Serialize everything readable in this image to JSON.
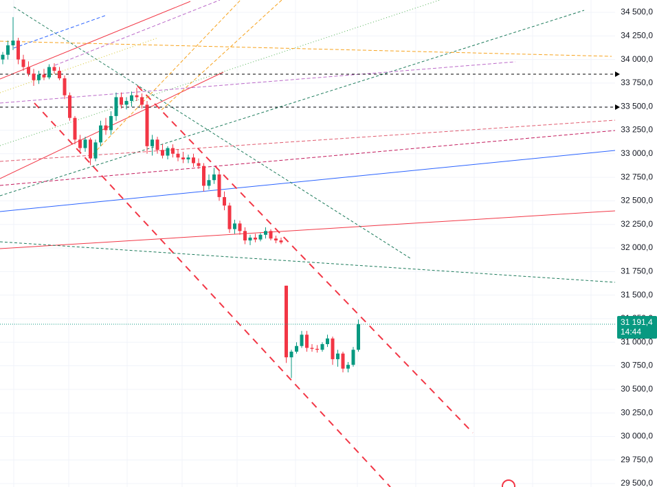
{
  "chart_data": {
    "type": "candlestick",
    "open": [
      34000,
      34050,
      34150,
      34200,
      34000,
      33920,
      33850,
      33780,
      33840,
      33810,
      33920,
      33880,
      33800,
      33620,
      33380,
      33150,
      33060,
      33150,
      32950,
      33120,
      33300,
      33250,
      33400,
      33600,
      33520,
      33560,
      33620,
      33600,
      33520,
      33080,
      33150,
      33040,
      32980,
      33060,
      33000,
      32960,
      32940,
      32960,
      32900,
      32870,
      32660,
      32720,
      32780,
      32540,
      32450,
      32200,
      32260,
      32180,
      32080,
      32110,
      32090,
      32140,
      32180,
      32100,
      32080,
      31600,
      30840,
      30900,
      30960,
      31080,
      30940,
      30930,
      30920,
      30980,
      31040,
      30820,
      30880,
      30720,
      30760,
      30920
    ],
    "high": [
      34080,
      34200,
      34450,
      34230,
      34050,
      33980,
      33900,
      33880,
      33900,
      33950,
      33960,
      33920,
      33830,
      33650,
      33400,
      33200,
      33180,
      33170,
      33150,
      33350,
      33380,
      33450,
      33650,
      33650,
      33600,
      33660,
      33700,
      33640,
      33560,
      33200,
      33180,
      33100,
      33080,
      33100,
      33050,
      33020,
      32990,
      33000,
      32950,
      32900,
      32780,
      32850,
      32820,
      32600,
      32480,
      32300,
      32290,
      32220,
      32140,
      32150,
      32160,
      32220,
      32200,
      32130,
      32110,
      31600,
      30920,
      31000,
      31120,
      31120,
      30980,
      30970,
      31000,
      31080,
      31060,
      30920,
      30900,
      30790,
      30950,
      31240
    ],
    "low": [
      33950,
      34000,
      34100,
      33950,
      33880,
      33820,
      33720,
      33740,
      33780,
      33790,
      33850,
      33780,
      33580,
      33350,
      33100,
      33000,
      33020,
      32880,
      32920,
      33080,
      33200,
      33200,
      33350,
      33480,
      33470,
      33500,
      33560,
      33480,
      33000,
      32980,
      33000,
      32950,
      32940,
      32960,
      32920,
      32900,
      32900,
      32860,
      32840,
      32600,
      32620,
      32680,
      32500,
      32400,
      32160,
      32150,
      32140,
      32040,
      32030,
      32060,
      32070,
      32100,
      32080,
      32050,
      32040,
      30780,
      30620,
      30880,
      30940,
      30900,
      30900,
      30890,
      30900,
      30950,
      30760,
      30740,
      30680,
      30680,
      30740,
      30900
    ],
    "close": [
      34050,
      34150,
      34200,
      34000,
      33920,
      33850,
      33780,
      33840,
      33810,
      33920,
      33880,
      33800,
      33620,
      33380,
      33150,
      33060,
      33150,
      32950,
      33120,
      33300,
      33250,
      33400,
      33600,
      33520,
      33560,
      33620,
      33600,
      33520,
      33080,
      33150,
      33040,
      32980,
      33060,
      33000,
      32960,
      32940,
      32960,
      32900,
      32870,
      32660,
      32720,
      32780,
      32540,
      32450,
      32200,
      32260,
      32180,
      32080,
      32110,
      32090,
      32140,
      32180,
      32100,
      32080,
      32060,
      30840,
      30900,
      30960,
      31080,
      30940,
      30930,
      30920,
      30980,
      31040,
      30820,
      30880,
      30720,
      30760,
      30920,
      31191.4
    ],
    "up_color": "#089981",
    "down_color": "#f23645",
    "ylim": [
      29464,
      34631
    ],
    "yticks": [
      {
        "value": 29500,
        "label": "29 500,0"
      },
      {
        "value": 29750,
        "label": "29 750,0"
      },
      {
        "value": 30000,
        "label": "30 000,0"
      },
      {
        "value": 30250,
        "label": "30 250,0"
      },
      {
        "value": 30500,
        "label": "30 500,0"
      },
      {
        "value": 30750,
        "label": "30 750,0"
      },
      {
        "value": 31000,
        "label": "31 000,0"
      },
      {
        "value": 31250,
        "label": "31 250,0"
      },
      {
        "value": 31500,
        "label": "31 500,0"
      },
      {
        "value": 31750,
        "label": "31 750,0"
      },
      {
        "value": 32000,
        "label": "32 000,0"
      },
      {
        "value": 32250,
        "label": "32 250,0"
      },
      {
        "value": 32500,
        "label": "32 500,0"
      },
      {
        "value": 32750,
        "label": "32 750,0"
      },
      {
        "value": 33000,
        "label": "33 000,0"
      },
      {
        "value": 33250,
        "label": "33 250,0"
      },
      {
        "value": 33500,
        "label": "33 500,0"
      },
      {
        "value": 33750,
        "label": "33 750,0"
      },
      {
        "value": 34000,
        "label": "34 000,0"
      },
      {
        "value": 34250,
        "label": "34 250,0"
      },
      {
        "value": 34500,
        "label": "34 500,0"
      }
    ],
    "grid": true,
    "last_price": {
      "value": 31191.4,
      "label": "31 191,4"
    },
    "countdown": "14:44"
  }
}
